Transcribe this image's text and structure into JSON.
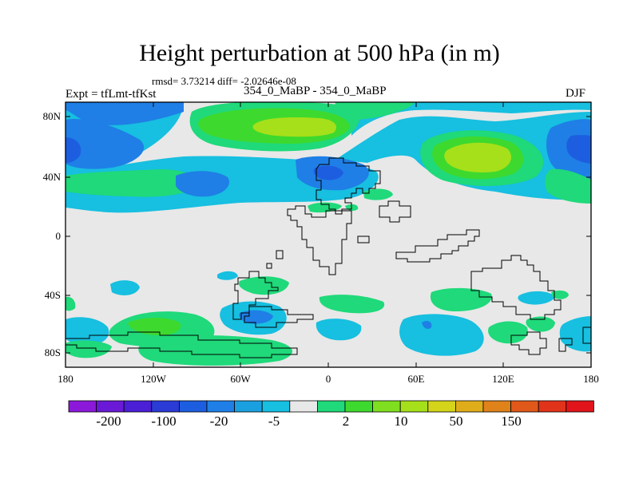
{
  "title": "Height perturbation at 500 hPa (in m)",
  "stats": "rmsd= 3.73214 diff= -2.02646e-08",
  "left_label": "Expt = tfLmt-tfKst",
  "center_label": "354_0_MaBP - 354_0_MaBP",
  "right_label": "DJF",
  "lat_ticks": [
    "80N",
    "40N",
    "0",
    "40S",
    "80S"
  ],
  "lon_ticks": [
    "180",
    "120W",
    "60W",
    "0",
    "60E",
    "120E",
    "180"
  ],
  "colorbar": {
    "colors": [
      "#8c19d9",
      "#6a1ad6",
      "#4a1fd6",
      "#2b3bd6",
      "#1d5ee0",
      "#1f7fe6",
      "#1aa0e0",
      "#17bfe0",
      "#e8e8e8",
      "#1fd97a",
      "#3ed92e",
      "#7fde1f",
      "#a6e01a",
      "#d4d41a",
      "#e0ad1a",
      "#e0821a",
      "#e0581a",
      "#e0331a",
      "#e0141a"
    ],
    "labels": [
      "-200",
      "-100",
      "-20",
      "-5",
      "2",
      "10",
      "50",
      "150"
    ]
  }
}
